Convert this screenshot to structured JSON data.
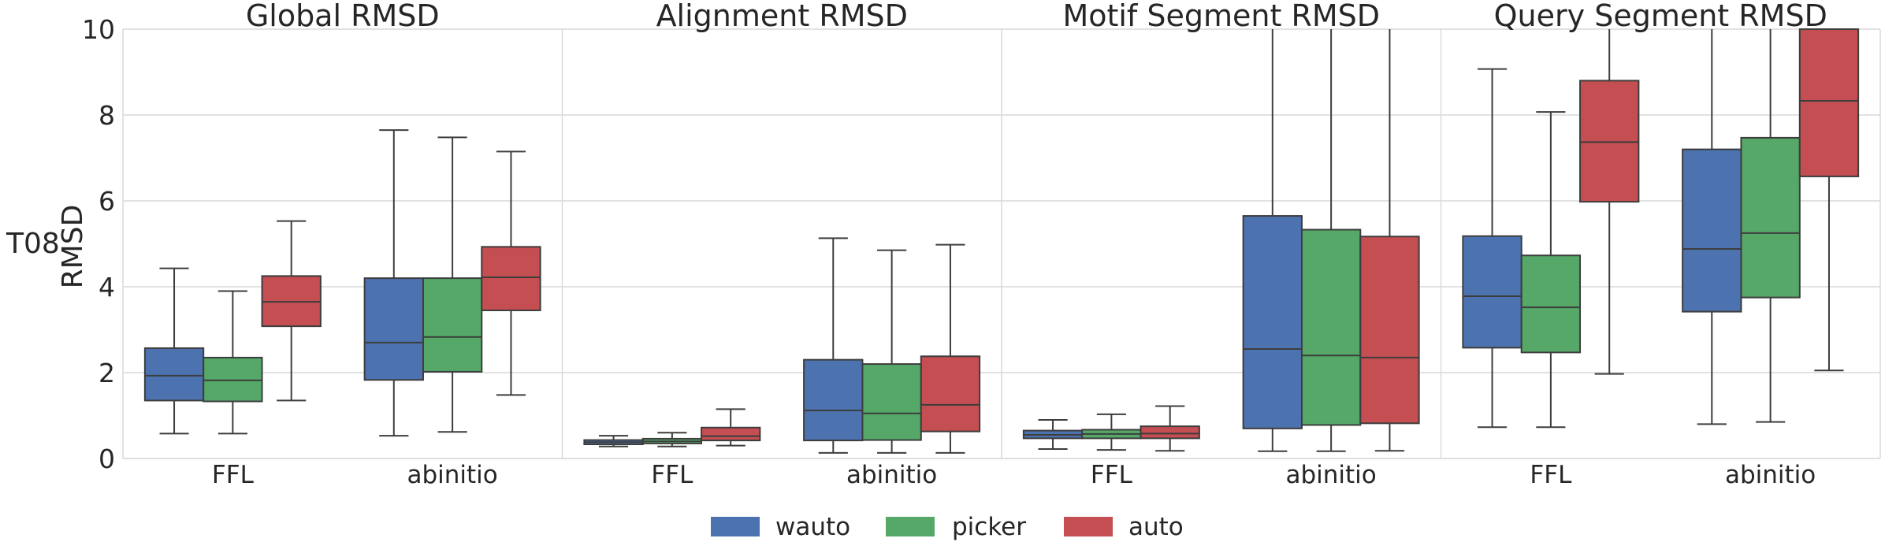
{
  "figure": {
    "row_label": "T08",
    "ylabel": "RMSD"
  },
  "legend": {
    "placement": "bottom-center",
    "items": [
      {
        "label": "wauto",
        "color": "#4c72b0"
      },
      {
        "label": "picker",
        "color": "#55a868"
      },
      {
        "label": "auto",
        "color": "#c44e52"
      }
    ]
  },
  "chart_data": [
    {
      "type": "box",
      "title": "Global RMSD",
      "ylabel": "RMSD",
      "ylim": [
        0,
        10
      ],
      "yticks": [
        "0",
        "2",
        "4",
        "6",
        "8",
        "10"
      ],
      "grid": true,
      "categories": [
        "FFL",
        "abinitio"
      ],
      "series": [
        {
          "name": "wauto",
          "color": "#4c72b0",
          "boxes": [
            {
              "whisker_low": 0.58,
              "q1": 1.35,
              "median": 1.93,
              "q3": 2.57,
              "whisker_high": 4.43
            },
            {
              "whisker_low": 0.53,
              "q1": 1.83,
              "median": 2.7,
              "q3": 4.2,
              "whisker_high": 7.65
            }
          ]
        },
        {
          "name": "picker",
          "color": "#55a868",
          "boxes": [
            {
              "whisker_low": 0.58,
              "q1": 1.33,
              "median": 1.82,
              "q3": 2.35,
              "whisker_high": 3.9
            },
            {
              "whisker_low": 0.62,
              "q1": 2.02,
              "median": 2.83,
              "q3": 4.2,
              "whisker_high": 7.48
            }
          ]
        },
        {
          "name": "auto",
          "color": "#c44e52",
          "boxes": [
            {
              "whisker_low": 1.35,
              "q1": 3.08,
              "median": 3.65,
              "q3": 4.25,
              "whisker_high": 5.53
            },
            {
              "whisker_low": 1.48,
              "q1": 3.45,
              "median": 4.22,
              "q3": 4.93,
              "whisker_high": 7.15
            }
          ]
        }
      ]
    },
    {
      "type": "box",
      "title": "Alignment RMSD",
      "ylim": [
        0,
        10
      ],
      "grid": true,
      "categories": [
        "FFL",
        "abinitio"
      ],
      "series": [
        {
          "name": "wauto",
          "color": "#4c72b0",
          "boxes": [
            {
              "whisker_low": 0.28,
              "q1": 0.33,
              "median": 0.38,
              "q3": 0.43,
              "whisker_high": 0.53
            },
            {
              "whisker_low": 0.13,
              "q1": 0.42,
              "median": 1.12,
              "q3": 2.3,
              "whisker_high": 5.13
            }
          ]
        },
        {
          "name": "picker",
          "color": "#55a868",
          "boxes": [
            {
              "whisker_low": 0.28,
              "q1": 0.35,
              "median": 0.4,
              "q3": 0.46,
              "whisker_high": 0.6
            },
            {
              "whisker_low": 0.13,
              "q1": 0.43,
              "median": 1.05,
              "q3": 2.2,
              "whisker_high": 4.85
            }
          ]
        },
        {
          "name": "auto",
          "color": "#c44e52",
          "boxes": [
            {
              "whisker_low": 0.3,
              "q1": 0.42,
              "median": 0.52,
              "q3": 0.72,
              "whisker_high": 1.15
            },
            {
              "whisker_low": 0.13,
              "q1": 0.63,
              "median": 1.25,
              "q3": 2.38,
              "whisker_high": 4.98
            }
          ]
        }
      ]
    },
    {
      "type": "box",
      "title": "Motif Segment RMSD",
      "ylim": [
        0,
        10
      ],
      "grid": true,
      "categories": [
        "FFL",
        "abinitio"
      ],
      "series": [
        {
          "name": "wauto",
          "color": "#4c72b0",
          "boxes": [
            {
              "whisker_low": 0.22,
              "q1": 0.47,
              "median": 0.55,
              "q3": 0.65,
              "whisker_high": 0.9
            },
            {
              "whisker_low": 0.17,
              "q1": 0.7,
              "median": 2.55,
              "q3": 5.65,
              "whisker_high": 10.0
            }
          ]
        },
        {
          "name": "picker",
          "color": "#55a868",
          "boxes": [
            {
              "whisker_low": 0.2,
              "q1": 0.47,
              "median": 0.57,
              "q3": 0.67,
              "whisker_high": 1.03
            },
            {
              "whisker_low": 0.17,
              "q1": 0.78,
              "median": 2.4,
              "q3": 5.33,
              "whisker_high": 10.0
            }
          ]
        },
        {
          "name": "auto",
          "color": "#c44e52",
          "boxes": [
            {
              "whisker_low": 0.18,
              "q1": 0.47,
              "median": 0.58,
              "q3": 0.75,
              "whisker_high": 1.22
            },
            {
              "whisker_low": 0.18,
              "q1": 0.82,
              "median": 2.35,
              "q3": 5.17,
              "whisker_high": 10.0
            }
          ]
        }
      ]
    },
    {
      "type": "box",
      "title": "Query Segment RMSD",
      "ylim": [
        0,
        10
      ],
      "grid": true,
      "categories": [
        "FFL",
        "abinitio"
      ],
      "series": [
        {
          "name": "wauto",
          "color": "#4c72b0",
          "boxes": [
            {
              "whisker_low": 0.73,
              "q1": 2.58,
              "median": 3.78,
              "q3": 5.18,
              "whisker_high": 9.07
            },
            {
              "whisker_low": 0.8,
              "q1": 3.42,
              "median": 4.88,
              "q3": 7.2,
              "whisker_high": 10.0
            }
          ]
        },
        {
          "name": "picker",
          "color": "#55a868",
          "boxes": [
            {
              "whisker_low": 0.73,
              "q1": 2.47,
              "median": 3.52,
              "q3": 4.73,
              "whisker_high": 8.07
            },
            {
              "whisker_low": 0.85,
              "q1": 3.75,
              "median": 5.25,
              "q3": 7.47,
              "whisker_high": 10.0
            }
          ]
        },
        {
          "name": "auto",
          "color": "#c44e52",
          "boxes": [
            {
              "whisker_low": 1.97,
              "q1": 5.98,
              "median": 7.37,
              "q3": 8.8,
              "whisker_high": 10.0
            },
            {
              "whisker_low": 2.05,
              "q1": 6.57,
              "median": 8.33,
              "q3": 10.0,
              "whisker_high": 10.0
            }
          ]
        }
      ]
    }
  ]
}
